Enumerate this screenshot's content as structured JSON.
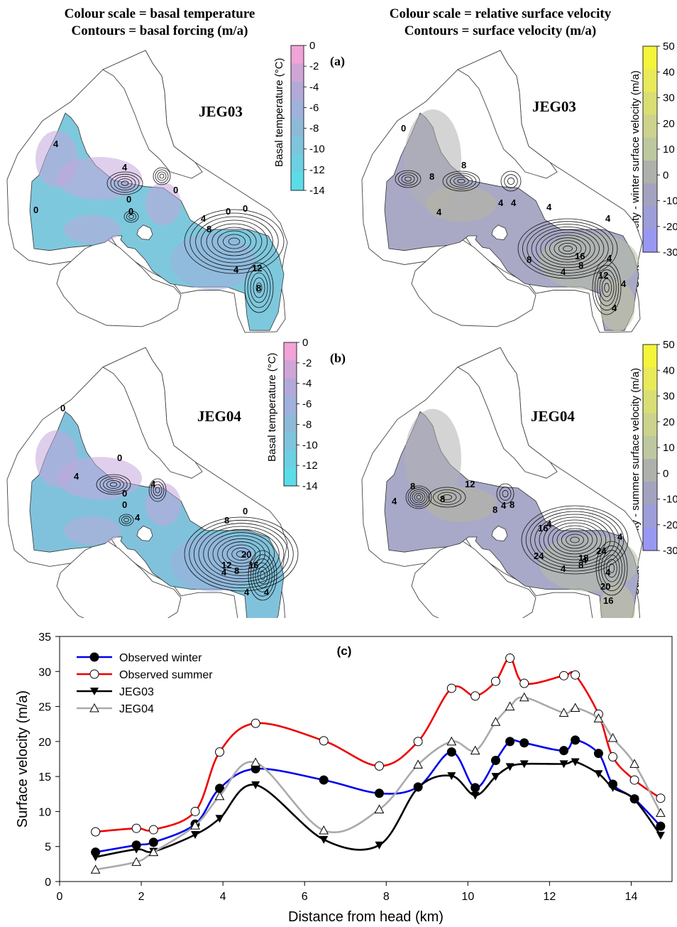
{
  "left_header": {
    "line1": "Colour scale = basal temperature",
    "line2": "Contours = basal forcing (m/a)"
  },
  "right_header": {
    "line1": "Colour scale = relative surface velocity",
    "line2": "Contours = surface velocity (m/a)"
  },
  "panel_a": {
    "label": "(a)",
    "left_name": "JEG03",
    "right_name": "JEG03"
  },
  "panel_b": {
    "label": "(b)",
    "left_name": "JEG04",
    "right_name": "JEG04"
  },
  "colorbar_temp": {
    "title": "Basal temperature (°C)",
    "ticks": [
      "0",
      "-2",
      "-4",
      "-6",
      "-8",
      "-10",
      "-12",
      "-14"
    ],
    "colors": [
      "#f2a3d8",
      "#cfa5d6",
      "#b3a9d8",
      "#9fb1dc",
      "#8ebad8",
      "#7ec4dc",
      "#6dd0e2",
      "#5cdce9"
    ]
  },
  "colorbar_vel_a": {
    "title": "Surface velocity - winter surface velocity (m/a)",
    "ticks": [
      "50",
      "40",
      "30",
      "20",
      "10",
      "0",
      "-10",
      "-20",
      "-30"
    ]
  },
  "colorbar_vel_b": {
    "title": "Surface velocity - summer surface velocity (m/a)",
    "ticks": [
      "50",
      "40",
      "30",
      "20",
      "10",
      "0",
      "-10",
      "-20",
      "-30"
    ]
  },
  "vel_colors": [
    "#f4f43a",
    "#e8ea5a",
    "#d9de74",
    "#cdd38c",
    "#bec8a0",
    "#aeb0ac",
    "#a3a3c0",
    "#9d9dda",
    "#9898f2"
  ],
  "map_contour_labels": {
    "a_left": [
      "4",
      "4",
      "0",
      "0",
      "0",
      "0",
      "4",
      "8",
      "0",
      "0",
      "4",
      "12",
      "8"
    ],
    "a_right": [
      "0",
      "8",
      "8",
      "4",
      "4",
      "4",
      "4",
      "16",
      "8",
      "4",
      "8",
      "4",
      "12",
      "4",
      "4",
      "4"
    ],
    "b_left": [
      "0",
      "4",
      "0",
      "4",
      "0",
      "0",
      "4",
      "0",
      "8",
      "20",
      "12",
      "16",
      "4",
      "8",
      "4",
      "4"
    ],
    "b_right": [
      "8",
      "4",
      "8",
      "12",
      "8",
      "8",
      "4",
      "24",
      "4",
      "16",
      "4",
      "8",
      "4",
      "24",
      "18",
      "4",
      "20",
      "16",
      "4"
    ]
  },
  "chart_data": {
    "type": "line",
    "label": "(c)",
    "xlabel": "Distance from head (km)",
    "ylabel": "Surface velocity (m/a)",
    "xlim": [
      0,
      15
    ],
    "ylim": [
      0,
      35
    ],
    "xticks": [
      0,
      2,
      4,
      6,
      8,
      10,
      12,
      14
    ],
    "yticks": [
      0,
      5,
      10,
      15,
      20,
      25,
      30,
      35
    ],
    "legend_position": "top-left",
    "series": [
      {
        "name": "Observed winter",
        "color": "#0000ee",
        "marker": "filled-circle",
        "x": [
          0.88,
          1.88,
          2.3,
          3.32,
          3.92,
          4.8,
          6.47,
          7.83,
          8.78,
          9.6,
          10.18,
          10.68,
          11.03,
          11.38,
          12.35,
          12.63,
          13.2,
          13.55,
          14.08,
          14.72
        ],
        "y": [
          4.2,
          5.2,
          5.6,
          8.2,
          13.3,
          16.1,
          14.5,
          12.6,
          13.5,
          18.5,
          13.4,
          17.3,
          20.0,
          19.8,
          18.7,
          20.2,
          18.3,
          13.9,
          11.8,
          7.9
        ]
      },
      {
        "name": "Observed summer",
        "color": "#ee0000",
        "marker": "open-circle",
        "x": [
          0.88,
          1.88,
          2.3,
          3.32,
          3.92,
          4.8,
          6.47,
          7.83,
          8.78,
          9.6,
          10.18,
          10.68,
          11.03,
          11.38,
          12.35,
          12.63,
          13.2,
          13.55,
          14.08,
          14.72
        ],
        "y": [
          7.1,
          7.6,
          7.4,
          10.0,
          18.5,
          22.6,
          20.1,
          16.5,
          20.0,
          27.6,
          26.5,
          28.6,
          31.9,
          28.3,
          29.4,
          29.5,
          23.9,
          17.8,
          14.5,
          11.9
        ]
      },
      {
        "name": "JEG03",
        "color": "#000000",
        "marker": "filled-triangle-down",
        "x": [
          0.88,
          1.88,
          2.3,
          3.32,
          3.92,
          4.8,
          6.47,
          7.83,
          8.78,
          9.6,
          10.18,
          10.68,
          11.03,
          11.38,
          12.35,
          12.63,
          13.2,
          13.55,
          14.08,
          14.72
        ],
        "y": [
          3.5,
          4.6,
          4.3,
          6.7,
          9.0,
          13.8,
          6.0,
          5.2,
          13.4,
          15.1,
          12.3,
          15.0,
          16.4,
          16.8,
          16.8,
          17.1,
          15.4,
          13.4,
          11.7,
          6.6
        ]
      },
      {
        "name": "JEG04",
        "color": "#aaaaaa",
        "marker": "open-triangle-up",
        "x": [
          0.88,
          1.88,
          2.3,
          3.32,
          3.92,
          4.8,
          6.47,
          7.83,
          8.78,
          9.6,
          10.18,
          10.68,
          11.03,
          11.38,
          12.35,
          12.63,
          13.2,
          13.55,
          14.08,
          14.72
        ],
        "y": [
          1.7,
          2.8,
          4.2,
          8.0,
          12.2,
          17.0,
          7.3,
          10.3,
          16.7,
          20.0,
          18.7,
          22.8,
          25.0,
          26.3,
          24.1,
          24.8,
          23.3,
          20.5,
          16.8,
          9.8
        ]
      }
    ]
  }
}
